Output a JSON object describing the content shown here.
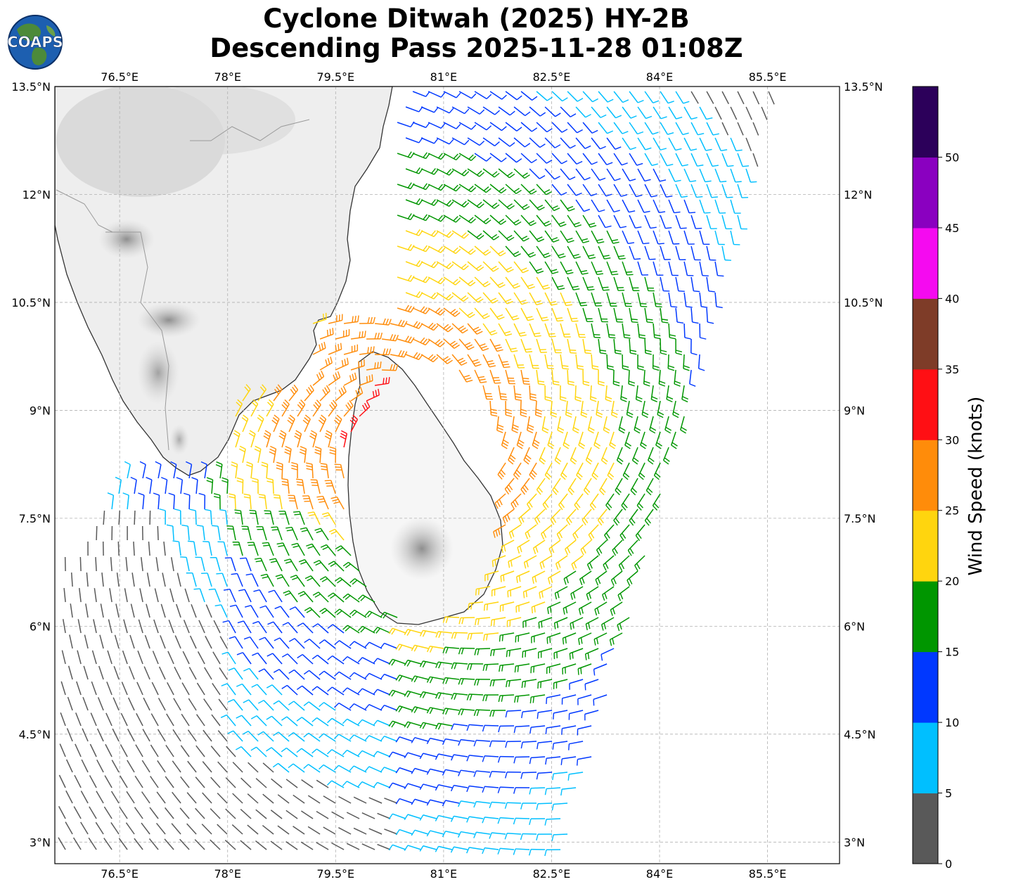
{
  "title": {
    "line1": "Cyclone Ditwah (2025) HY-2B",
    "line2": "Descending Pass 2025-11-28 01:08Z"
  },
  "logo": {
    "text": "COAPS",
    "icon": "globe-icon"
  },
  "map": {
    "lon_ticks": [
      "76.5°E",
      "78°E",
      "79.5°E",
      "81°E",
      "82.5°E",
      "84°E",
      "85.5°E"
    ],
    "lat_ticks": [
      "13.5°N",
      "12°N",
      "10.5°N",
      "9°N",
      "7.5°N",
      "6°N",
      "4.5°N",
      "3°N"
    ],
    "lon_range": [
      75.6,
      86.5
    ],
    "lat_range": [
      2.7,
      13.5
    ],
    "land_color": "#efefef",
    "coast_color": "#333333",
    "grid": true,
    "storm_center": {
      "lon": 80.45,
      "lat": 8.6
    }
  },
  "colorbar": {
    "label": "Wind Speed (knots)",
    "ticks": [
      "0",
      "5",
      "10",
      "15",
      "20",
      "25",
      "30",
      "35",
      "40",
      "45",
      "50"
    ],
    "bins": [
      {
        "min": 0,
        "max": 5,
        "color": "#595959"
      },
      {
        "min": 5,
        "max": 10,
        "color": "#00bfff"
      },
      {
        "min": 10,
        "max": 15,
        "color": "#0038ff"
      },
      {
        "min": 15,
        "max": 20,
        "color": "#009600"
      },
      {
        "min": 20,
        "max": 25,
        "color": "#ffd50e"
      },
      {
        "min": 25,
        "max": 30,
        "color": "#ff8c0a"
      },
      {
        "min": 30,
        "max": 35,
        "color": "#ff0f14"
      },
      {
        "min": 35,
        "max": 40,
        "color": "#7e3c28"
      },
      {
        "min": 40,
        "max": 45,
        "color": "#f50af0"
      },
      {
        "min": 45,
        "max": 50,
        "color": "#8a00c0"
      },
      {
        "min": 50,
        "max": 55,
        "color": "#2c005a"
      }
    ]
  }
}
